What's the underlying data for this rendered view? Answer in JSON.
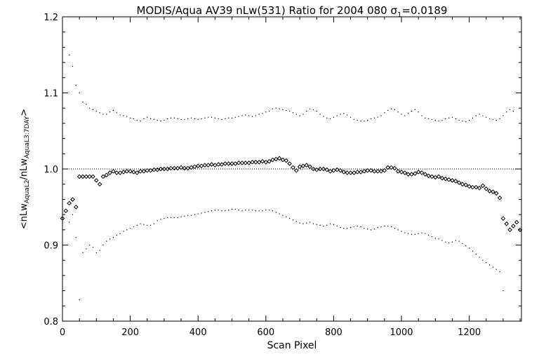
{
  "chart_data": {
    "type": "scatter",
    "title_main": "MODIS/Aqua AV39 nLw(531) Ratio for 2004 080 ",
    "title_sigma_symbol": "σ",
    "title_sigma_sub": "1",
    "title_sigma_value": "=0.0189",
    "xlabel": "Scan Pixel",
    "ylabel_parts": {
      "open": "<nLw",
      "sub1": "AquaL2",
      "mid": "/nLw",
      "sub2": "AquaL3:7DAY",
      "close": ">"
    },
    "xlim": [
      0,
      1354
    ],
    "ylim": [
      0.8,
      1.2
    ],
    "xticks": [
      {
        "value": 0,
        "label": "0"
      },
      {
        "value": 200,
        "label": "200"
      },
      {
        "value": 400,
        "label": "400"
      },
      {
        "value": 600,
        "label": "600"
      },
      {
        "value": 800,
        "label": "800"
      },
      {
        "value": 1000,
        "label": "1000"
      },
      {
        "value": 1200,
        "label": "1200"
      }
    ],
    "yticks": [
      {
        "value": 0.8,
        "label": "0.8"
      },
      {
        "value": 0.9,
        "label": "0.9"
      },
      {
        "value": 1.0,
        "label": "1.0"
      },
      {
        "value": 1.1,
        "label": "1.1"
      },
      {
        "value": 1.2,
        "label": "1.2"
      }
    ],
    "reference_line": 1.0,
    "grid": false,
    "series": [
      {
        "role": "mean",
        "marker": "diamond",
        "x": [
          0,
          10,
          20,
          30,
          40,
          50,
          60,
          70,
          80,
          90,
          100,
          110,
          120,
          130,
          140,
          150,
          160,
          170,
          180,
          190,
          200,
          210,
          220,
          230,
          240,
          250,
          260,
          270,
          280,
          290,
          300,
          310,
          320,
          330,
          340,
          350,
          360,
          370,
          380,
          390,
          400,
          410,
          420,
          430,
          440,
          450,
          460,
          470,
          480,
          490,
          500,
          510,
          520,
          530,
          540,
          550,
          560,
          570,
          580,
          590,
          600,
          610,
          620,
          630,
          640,
          650,
          660,
          670,
          680,
          690,
          700,
          710,
          720,
          730,
          740,
          750,
          760,
          770,
          780,
          790,
          800,
          810,
          820,
          830,
          840,
          850,
          860,
          870,
          880,
          890,
          900,
          910,
          920,
          930,
          940,
          950,
          960,
          970,
          980,
          990,
          1000,
          1010,
          1020,
          1030,
          1040,
          1050,
          1060,
          1070,
          1080,
          1090,
          1100,
          1110,
          1120,
          1130,
          1140,
          1150,
          1160,
          1170,
          1180,
          1190,
          1200,
          1210,
          1220,
          1230,
          1240,
          1250,
          1260,
          1270,
          1280,
          1290,
          1300,
          1310,
          1320,
          1330,
          1340,
          1350
        ],
        "y": [
          0.935,
          0.945,
          0.955,
          0.96,
          0.95,
          0.99,
          0.99,
          0.99,
          0.99,
          0.99,
          0.985,
          0.98,
          0.99,
          0.992,
          0.995,
          0.997,
          0.995,
          0.995,
          0.996,
          0.997,
          0.997,
          0.996,
          0.995,
          0.997,
          0.997,
          0.998,
          0.998,
          0.999,
          0.999,
          1.0,
          1.0,
          1.0,
          1.001,
          1.001,
          1.001,
          1.002,
          1.001,
          1.001,
          1.002,
          1.003,
          1.004,
          1.004,
          1.005,
          1.005,
          1.006,
          1.005,
          1.006,
          1.006,
          1.007,
          1.007,
          1.007,
          1.007,
          1.008,
          1.008,
          1.008,
          1.008,
          1.009,
          1.009,
          1.009,
          1.01,
          1.009,
          1.01,
          1.012,
          1.013,
          1.014,
          1.012,
          1.011,
          1.007,
          1.002,
          0.998,
          1.003,
          1.004,
          1.005,
          1.003,
          1.0,
          0.999,
          1.0,
          1.0,
          0.999,
          0.997,
          0.998,
          0.999,
          0.998,
          0.996,
          0.995,
          0.995,
          0.995,
          0.996,
          0.996,
          0.997,
          0.998,
          0.998,
          0.997,
          0.997,
          0.997,
          0.998,
          1.002,
          1.002,
          1.001,
          0.997,
          0.996,
          0.995,
          0.993,
          0.993,
          0.994,
          0.996,
          0.995,
          0.993,
          0.991,
          0.99,
          0.989,
          0.99,
          0.988,
          0.987,
          0.986,
          0.985,
          0.984,
          0.982,
          0.98,
          0.979,
          0.977,
          0.976,
          0.976,
          0.975,
          0.978,
          0.974,
          0.971,
          0.97,
          0.968,
          0.962,
          0.935,
          0.928,
          0.92,
          0.925,
          0.93,
          0.92
        ]
      },
      {
        "role": "upper",
        "marker": "dot",
        "x": [
          20,
          30,
          40,
          50,
          60,
          70,
          80,
          90,
          100,
          110,
          120,
          130,
          140,
          150,
          160,
          170,
          180,
          190,
          200,
          210,
          220,
          230,
          240,
          250,
          260,
          270,
          280,
          290,
          300,
          310,
          320,
          330,
          340,
          350,
          360,
          370,
          380,
          390,
          400,
          410,
          420,
          430,
          440,
          450,
          460,
          470,
          480,
          490,
          500,
          510,
          520,
          530,
          540,
          550,
          560,
          570,
          580,
          590,
          600,
          610,
          620,
          630,
          640,
          650,
          660,
          670,
          680,
          690,
          700,
          710,
          720,
          730,
          740,
          750,
          760,
          770,
          780,
          790,
          800,
          810,
          820,
          830,
          840,
          850,
          860,
          870,
          880,
          890,
          900,
          910,
          920,
          930,
          940,
          950,
          960,
          970,
          980,
          990,
          1000,
          1010,
          1020,
          1030,
          1040,
          1050,
          1060,
          1070,
          1080,
          1090,
          1100,
          1110,
          1120,
          1130,
          1140,
          1150,
          1160,
          1170,
          1180,
          1190,
          1200,
          1210,
          1220,
          1230,
          1240,
          1250,
          1260,
          1270,
          1280,
          1290,
          1300,
          1310,
          1320,
          1330
        ],
        "y": [
          1.15,
          1.135,
          1.11,
          1.1,
          1.088,
          1.085,
          1.08,
          1.078,
          1.076,
          1.074,
          1.072,
          1.072,
          1.075,
          1.077,
          1.074,
          1.071,
          1.07,
          1.069,
          1.067,
          1.066,
          1.064,
          1.063,
          1.066,
          1.068,
          1.066,
          1.065,
          1.064,
          1.063,
          1.064,
          1.066,
          1.067,
          1.067,
          1.066,
          1.065,
          1.065,
          1.066,
          1.067,
          1.066,
          1.065,
          1.066,
          1.067,
          1.068,
          1.068,
          1.067,
          1.066,
          1.065,
          1.066,
          1.067,
          1.067,
          1.068,
          1.069,
          1.07,
          1.071,
          1.07,
          1.069,
          1.07,
          1.072,
          1.073,
          1.075,
          1.076,
          1.079,
          1.08,
          1.079,
          1.078,
          1.077,
          1.076,
          1.074,
          1.072,
          1.07,
          1.072,
          1.076,
          1.079,
          1.078,
          1.076,
          1.072,
          1.069,
          1.067,
          1.066,
          1.068,
          1.07,
          1.072,
          1.073,
          1.071,
          1.068,
          1.065,
          1.064,
          1.063,
          1.063,
          1.064,
          1.066,
          1.067,
          1.068,
          1.07,
          1.074,
          1.077,
          1.079,
          1.078,
          1.075,
          1.072,
          1.07,
          1.073,
          1.076,
          1.078,
          1.075,
          1.07,
          1.067,
          1.066,
          1.065,
          1.064,
          1.063,
          1.064,
          1.066,
          1.067,
          1.068,
          1.066,
          1.064,
          1.063,
          1.062,
          1.064,
          1.067,
          1.07,
          1.072,
          1.07,
          1.068,
          1.066,
          1.065,
          1.064,
          1.066,
          1.07,
          1.075,
          1.078,
          1.076
        ]
      },
      {
        "role": "lower",
        "marker": "dot",
        "x": [
          20,
          30,
          40,
          50,
          60,
          70,
          80,
          90,
          100,
          110,
          120,
          130,
          140,
          150,
          160,
          170,
          180,
          190,
          200,
          210,
          220,
          230,
          240,
          250,
          260,
          270,
          280,
          290,
          300,
          310,
          320,
          330,
          340,
          350,
          360,
          370,
          380,
          390,
          400,
          410,
          420,
          430,
          440,
          450,
          460,
          470,
          480,
          490,
          500,
          510,
          520,
          530,
          540,
          550,
          560,
          570,
          580,
          590,
          600,
          610,
          620,
          630,
          640,
          650,
          660,
          670,
          680,
          690,
          700,
          710,
          720,
          730,
          740,
          750,
          760,
          770,
          780,
          790,
          800,
          810,
          820,
          830,
          840,
          850,
          860,
          870,
          880,
          890,
          900,
          910,
          920,
          930,
          940,
          950,
          960,
          970,
          980,
          990,
          1000,
          1010,
          1020,
          1030,
          1040,
          1050,
          1060,
          1070,
          1080,
          1090,
          1100,
          1110,
          1120,
          1130,
          1140,
          1150,
          1160,
          1170,
          1180,
          1190,
          1200,
          1210,
          1220,
          1230,
          1240,
          1250,
          1260,
          1270,
          1280,
          1290,
          1300
        ],
        "y": [
          0.93,
          0.94,
          0.91,
          0.828,
          0.89,
          0.895,
          0.9,
          0.897,
          0.89,
          0.893,
          0.9,
          0.905,
          0.908,
          0.91,
          0.913,
          0.915,
          0.918,
          0.92,
          0.922,
          0.924,
          0.926,
          0.928,
          0.927,
          0.926,
          0.926,
          0.928,
          0.932,
          0.934,
          0.935,
          0.936,
          0.936,
          0.936,
          0.936,
          0.937,
          0.938,
          0.939,
          0.939,
          0.94,
          0.941,
          0.942,
          0.943,
          0.944,
          0.945,
          0.946,
          0.946,
          0.945,
          0.945,
          0.946,
          0.947,
          0.947,
          0.946,
          0.945,
          0.946,
          0.946,
          0.946,
          0.945,
          0.945,
          0.945,
          0.946,
          0.946,
          0.945,
          0.943,
          0.941,
          0.939,
          0.937,
          0.935,
          0.933,
          0.931,
          0.929,
          0.928,
          0.929,
          0.93,
          0.928,
          0.927,
          0.926,
          0.925,
          0.926,
          0.928,
          0.927,
          0.925,
          0.923,
          0.922,
          0.922,
          0.923,
          0.924,
          0.925,
          0.924,
          0.922,
          0.921,
          0.92,
          0.921,
          0.923,
          0.924,
          0.925,
          0.925,
          0.924,
          0.922,
          0.92,
          0.918,
          0.916,
          0.915,
          0.914,
          0.914,
          0.915,
          0.916,
          0.915,
          0.913,
          0.911,
          0.909,
          0.908,
          0.906,
          0.904,
          0.903,
          0.904,
          0.906,
          0.905,
          0.902,
          0.899,
          0.896,
          0.892,
          0.888,
          0.884,
          0.88,
          0.877,
          0.874,
          0.871,
          0.868,
          0.865,
          0.84
        ]
      }
    ]
  }
}
